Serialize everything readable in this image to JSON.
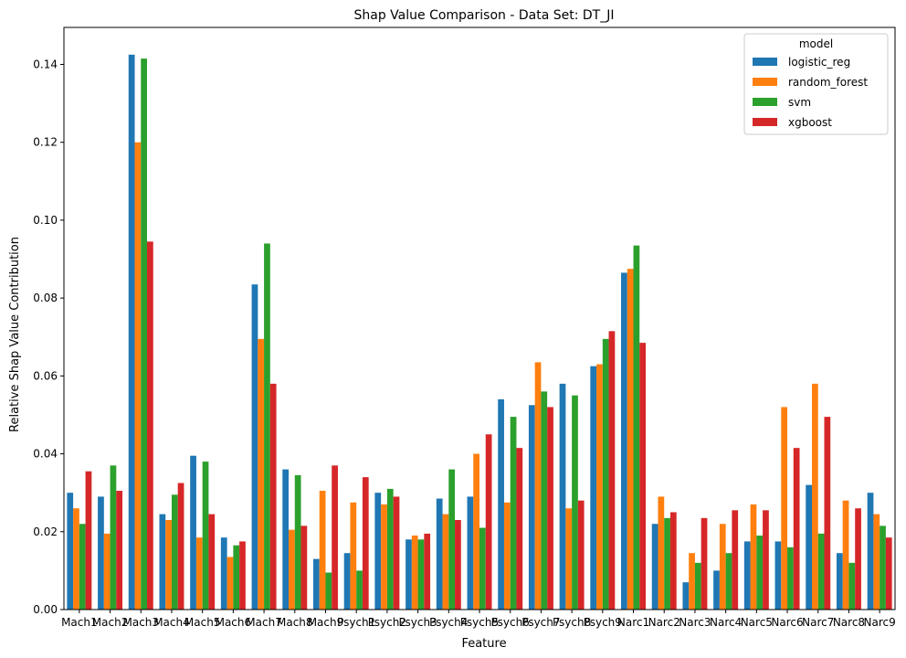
{
  "chart_data": {
    "type": "bar",
    "title": "Shap Value Comparison - Data Set: DT_JI",
    "xlabel": "Feature",
    "ylabel": "Relative Shap Value Contribution",
    "ylim": [
      0,
      0.1495
    ],
    "yticks": [
      0.0,
      0.02,
      0.04,
      0.06,
      0.08,
      0.1,
      0.12,
      0.14
    ],
    "ytick_labels": [
      "0.00",
      "0.02",
      "0.04",
      "0.06",
      "0.08",
      "0.10",
      "0.12",
      "0.14"
    ],
    "grid": false,
    "legend": {
      "title": "model",
      "placement": "top-right"
    },
    "categories": [
      "Mach1",
      "Mach2",
      "Mach3",
      "Mach4",
      "Mach5",
      "Mach6",
      "Mach7",
      "Mach8",
      "Mach9",
      "Psych1",
      "Psych2",
      "Psych3",
      "Psych4",
      "Psych5",
      "Psych6",
      "Psych7",
      "Psych8",
      "Psych9",
      "Narc1",
      "Narc2",
      "Narc3",
      "Narc4",
      "Narc5",
      "Narc6",
      "Narc7",
      "Narc8",
      "Narc9"
    ],
    "series": [
      {
        "name": "logistic_reg",
        "color": "#1f77b4",
        "values": [
          0.03,
          0.029,
          0.1425,
          0.0245,
          0.0395,
          0.0185,
          0.0835,
          0.036,
          0.013,
          0.0145,
          0.03,
          0.018,
          0.0285,
          0.029,
          0.054,
          0.0525,
          0.058,
          0.0625,
          0.0865,
          0.022,
          0.007,
          0.01,
          0.0175,
          0.0175,
          0.032,
          0.0145,
          0.03
        ]
      },
      {
        "name": "random_forest",
        "color": "#ff7f0e",
        "values": [
          0.026,
          0.0195,
          0.12,
          0.023,
          0.0185,
          0.0135,
          0.0695,
          0.0205,
          0.0305,
          0.0275,
          0.027,
          0.019,
          0.0245,
          0.04,
          0.0275,
          0.0635,
          0.026,
          0.063,
          0.0875,
          0.029,
          0.0145,
          0.022,
          0.027,
          0.052,
          0.058,
          0.028,
          0.0245
        ]
      },
      {
        "name": "svm",
        "color": "#2ca02c",
        "values": [
          0.022,
          0.037,
          0.1415,
          0.0295,
          0.038,
          0.0165,
          0.094,
          0.0345,
          0.0095,
          0.01,
          0.031,
          0.018,
          0.036,
          0.021,
          0.0495,
          0.056,
          0.055,
          0.0695,
          0.0935,
          0.0235,
          0.012,
          0.0145,
          0.019,
          0.016,
          0.0195,
          0.012,
          0.0215
        ]
      },
      {
        "name": "xgboost",
        "color": "#d62728",
        "values": [
          0.0355,
          0.0305,
          0.0945,
          0.0325,
          0.0245,
          0.0175,
          0.058,
          0.0215,
          0.037,
          0.034,
          0.029,
          0.0195,
          0.023,
          0.045,
          0.0415,
          0.052,
          0.028,
          0.0715,
          0.0685,
          0.025,
          0.0235,
          0.0255,
          0.0255,
          0.0415,
          0.0495,
          0.026,
          0.0185
        ]
      }
    ]
  }
}
